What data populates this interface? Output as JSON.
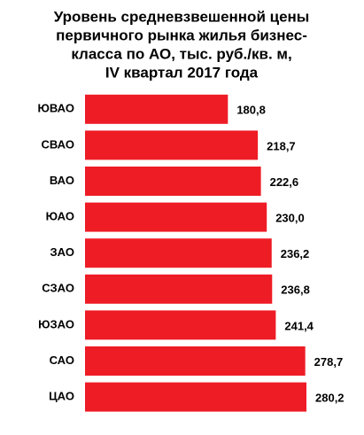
{
  "chart_data": {
    "type": "bar",
    "orientation": "horizontal",
    "title": [
      "Уровень средневзвешенной цены",
      "первичного рынка жилья бизнес-",
      "класса  по АО, тыс. руб./кв. м,",
      "IV квартал 2017 года"
    ],
    "categories": [
      "ЮВАО",
      "СВАО",
      "ВАО",
      "ЮАО",
      "ЗАО",
      "СЗАО",
      "ЮЗАО",
      "САО",
      "ЦАО"
    ],
    "values": [
      180.8,
      218.7,
      222.6,
      230.0,
      236.2,
      236.8,
      241.4,
      278.7,
      280.2
    ],
    "value_labels": [
      "180,8",
      "218,7",
      "222,6",
      "230,0",
      "236,2",
      "236,8",
      "241,4",
      "278,7",
      "280,2"
    ],
    "color": "#ee1c25"
  }
}
